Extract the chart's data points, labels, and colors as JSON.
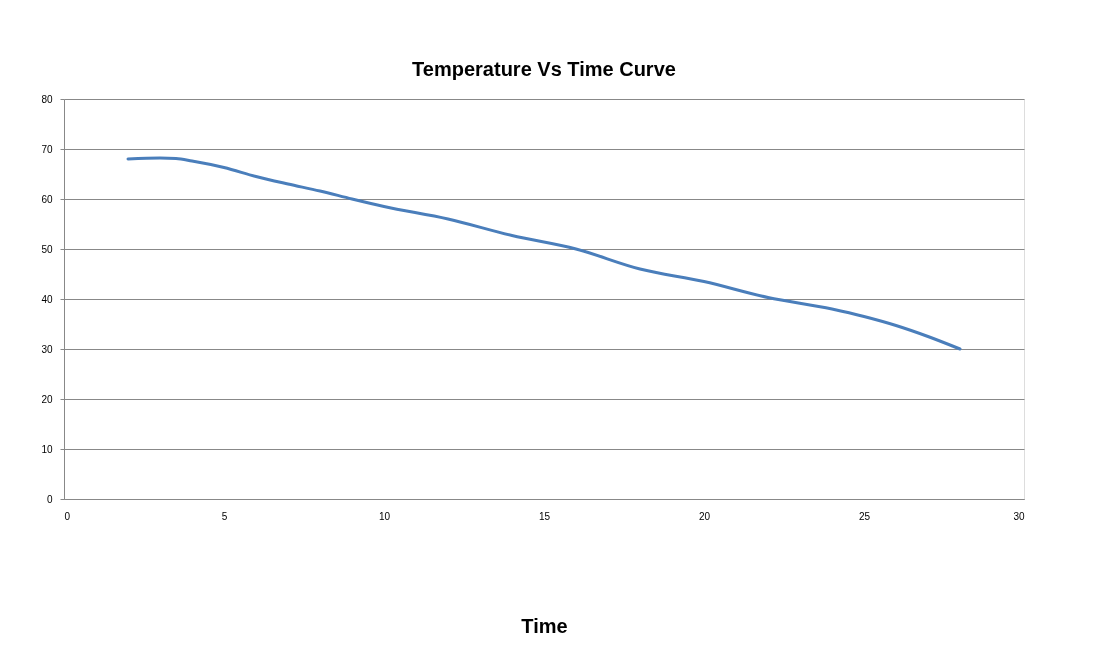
{
  "chart_data": {
    "type": "line",
    "title": "Temperature Vs Time Curve",
    "xlabel": "Time",
    "x": [
      2,
      3,
      3.5,
      4,
      5,
      6,
      7,
      8,
      9,
      10,
      12,
      14,
      16,
      18,
      20,
      22,
      24,
      25,
      26,
      27,
      28
    ],
    "series": [
      {
        "color": "#4a7ebb",
        "values": [
          68,
          68.2,
          68.1,
          67.6,
          66.3,
          64.5,
          63,
          61.6,
          60,
          58.5,
          56,
          52.7,
          50,
          46,
          43.5,
          40.3,
          38,
          36.5,
          34.7,
          32.5,
          30
        ]
      }
    ],
    "xlim": [
      0,
      30
    ],
    "xticks": [
      0,
      5,
      10,
      15,
      20,
      25,
      30
    ],
    "ylim": [
      0,
      80
    ],
    "yticks": [
      0,
      10,
      20,
      30,
      40,
      50,
      60,
      70,
      80
    ],
    "grid": "y",
    "marker": "none",
    "line_style": "solid"
  }
}
